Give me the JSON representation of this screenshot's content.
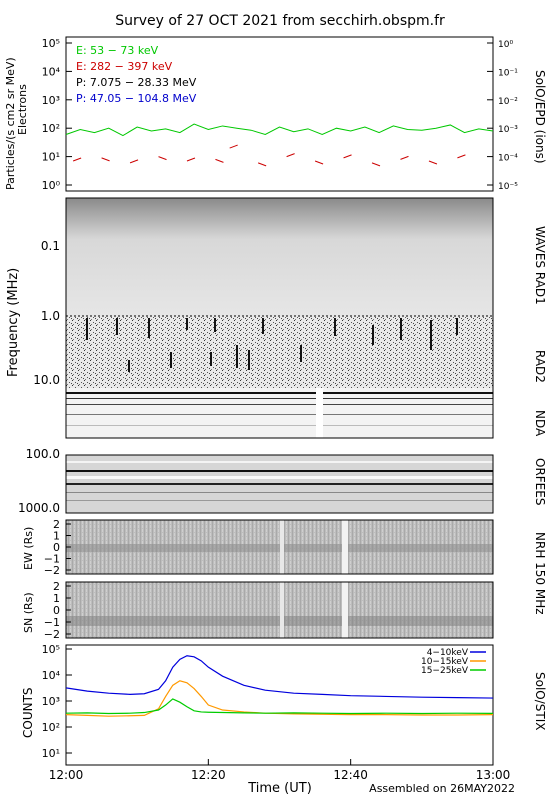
{
  "title": "Survey of 27 OCT 2021 from secchirh.obspm.fr",
  "footer": "Assembled on 26MAY2022",
  "x_axis": {
    "label": "Time (UT)",
    "ticks": [
      "12:00",
      "12:20",
      "12:40",
      "13:00"
    ],
    "range_minutes": [
      0,
      60
    ]
  },
  "colors": {
    "electron_low": "#00c800",
    "electron_high": "#cc0000",
    "proton_low": "#000000",
    "proton_high": "#0000cc",
    "stix_4_10": "#0000dd",
    "stix_10_15": "#ff9900",
    "stix_15_25": "#00cc00"
  },
  "panels": {
    "epd": {
      "ylabel": "Particles/(s cm2 sr MeV)",
      "ylabel2": "Electrons",
      "right_label": "SolO/EPD (ions)",
      "left_ticks": [
        "10⁰",
        "10¹",
        "10²",
        "10³",
        "10⁴",
        "10⁵"
      ],
      "right_ticks": [
        "10⁻⁵",
        "10⁻⁴",
        "10⁻³",
        "10⁻²",
        "10⁻¹",
        "10⁰"
      ],
      "legend": [
        "E: 53 − 73 keV",
        "E: 282 − 397 keV",
        "P: 7.075 − 28.33 MeV",
        "P: 47.05 − 104.8 MeV"
      ]
    },
    "waves": {
      "right_label_top": "WAVES RAD1",
      "right_label_mid": "RAD2",
      "right_label_bot": "NDA",
      "ylabel": "Frequency (MHz)",
      "ticks": [
        "0.1",
        "1.0",
        "10.0",
        "100.0"
      ]
    },
    "orfees": {
      "right_label": "ORFEES",
      "ticks": [
        "1000.0"
      ]
    },
    "nrh": {
      "right_label": "NRH 150 MHz",
      "ew_label": "EW (Rs)",
      "sn_label": "SN (Rs)",
      "ticks": [
        "2",
        "1",
        "0",
        "−1",
        "−2"
      ]
    },
    "stix": {
      "ylabel": "COUNTS",
      "right_label": "SolO/STIX",
      "ticks": [
        "10¹",
        "10²",
        "10³",
        "10⁴",
        "10⁵"
      ],
      "legend": [
        "4−10keV",
        "10−15keV",
        "15−25keV"
      ]
    }
  },
  "chart_data": [
    {
      "type": "line",
      "title": "SolO/EPD",
      "x": "minutes after 12:00",
      "y_scale": "log",
      "ylim": [
        1,
        100000
      ],
      "series": [
        {
          "name": "E: 53 − 73 keV",
          "x": [
            0,
            2,
            4,
            6,
            8,
            10,
            12,
            14,
            16,
            18,
            20,
            22,
            24,
            26,
            28,
            30,
            32,
            34,
            36,
            38,
            40,
            42,
            44,
            46,
            48,
            50,
            52,
            54,
            56,
            58,
            60
          ],
          "values": [
            60,
            90,
            70,
            100,
            55,
            110,
            80,
            95,
            70,
            140,
            90,
            120,
            100,
            85,
            60,
            110,
            75,
            95,
            60,
            100,
            80,
            110,
            70,
            120,
            90,
            85,
            100,
            130,
            70,
            95,
            80
          ]
        },
        {
          "name": "E: 282 − 397 keV",
          "x": [
            1,
            5,
            9,
            13,
            17,
            21,
            23,
            27,
            31,
            35,
            39,
            43,
            47,
            51,
            55
          ],
          "values": [
            7,
            9,
            6,
            10,
            7,
            8,
            20,
            6,
            10,
            7,
            9,
            6,
            8,
            7,
            9
          ]
        }
      ]
    },
    {
      "type": "line",
      "title": "SolO/STIX",
      "x": "minutes after 12:00",
      "y_scale": "log",
      "ylim": [
        10,
        100000
      ],
      "series": [
        {
          "name": "4−10keV",
          "x": [
            0,
            3,
            6,
            9,
            11,
            13,
            14,
            15,
            16,
            17,
            18,
            19,
            20,
            22,
            25,
            28,
            32,
            36,
            40,
            45,
            50,
            55,
            60
          ],
          "values": [
            3200,
            2400,
            2000,
            1800,
            1900,
            2800,
            6000,
            20000,
            40000,
            55000,
            50000,
            35000,
            20000,
            9000,
            4000,
            2600,
            2000,
            1800,
            1600,
            1500,
            1400,
            1350,
            1300
          ]
        },
        {
          "name": "10−15keV",
          "x": [
            0,
            3,
            6,
            9,
            11,
            13,
            14,
            15,
            16,
            17,
            18,
            19,
            20,
            22,
            25,
            28,
            32,
            36,
            40,
            45,
            50,
            55,
            60
          ],
          "values": [
            300,
            280,
            260,
            270,
            280,
            500,
            1500,
            4000,
            6000,
            5000,
            3000,
            1500,
            700,
            450,
            380,
            340,
            320,
            310,
            300,
            300,
            290,
            290,
            300
          ]
        },
        {
          "name": "15−25keV",
          "x": [
            0,
            3,
            6,
            9,
            11,
            13,
            14,
            15,
            16,
            17,
            18,
            19,
            20,
            22,
            25,
            28,
            32,
            36,
            40,
            45,
            50,
            55,
            60
          ],
          "values": [
            340,
            350,
            330,
            340,
            360,
            450,
            700,
            1200,
            900,
            600,
            420,
            380,
            370,
            360,
            350,
            340,
            350,
            340,
            330,
            340,
            330,
            340,
            335
          ]
        }
      ]
    }
  ]
}
